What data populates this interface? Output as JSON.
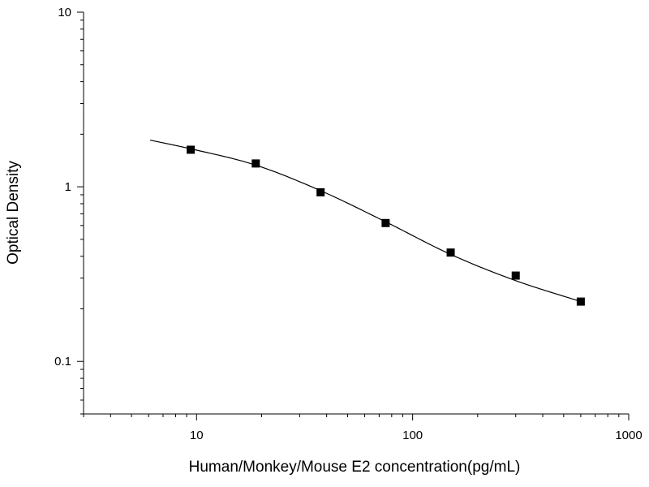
{
  "chart_data": {
    "type": "scatter",
    "title": "",
    "xlabel": "Human/Monkey/Mouse E2 concentration(pg/mL)",
    "ylabel": "Optical Density",
    "x_scale": "log",
    "y_scale": "log",
    "xlim": [
      3,
      1000
    ],
    "ylim": [
      0.05,
      10
    ],
    "x_ticks": [
      {
        "value": 10,
        "label": "10"
      },
      {
        "value": 100,
        "label": "100"
      },
      {
        "value": 1000,
        "label": "1000"
      }
    ],
    "y_ticks": [
      {
        "value": 0.1,
        "label": "0.1"
      },
      {
        "value": 1,
        "label": "1"
      },
      {
        "value": 10,
        "label": "10"
      }
    ],
    "grid": false,
    "legend": "none",
    "series": [
      {
        "points": [
          {
            "x": 9.4,
            "y": 1.63
          },
          {
            "x": 18.8,
            "y": 1.36
          },
          {
            "x": 37.5,
            "y": 0.93
          },
          {
            "x": 75,
            "y": 0.62
          },
          {
            "x": 150,
            "y": 0.42
          },
          {
            "x": 300,
            "y": 0.31
          },
          {
            "x": 600,
            "y": 0.22
          }
        ],
        "marker": "square",
        "color": "#000000"
      }
    ],
    "fit_curve": {
      "x_range": [
        6.1,
        600
      ],
      "points": [
        {
          "x": 6.1,
          "y": 1.85
        },
        {
          "x": 9.4,
          "y": 1.65
        },
        {
          "x": 18.8,
          "y": 1.33
        },
        {
          "x": 37.5,
          "y": 0.95
        },
        {
          "x": 75,
          "y": 0.63
        },
        {
          "x": 150,
          "y": 0.41
        },
        {
          "x": 300,
          "y": 0.29
        },
        {
          "x": 600,
          "y": 0.22
        }
      ],
      "color": "#000000"
    }
  }
}
